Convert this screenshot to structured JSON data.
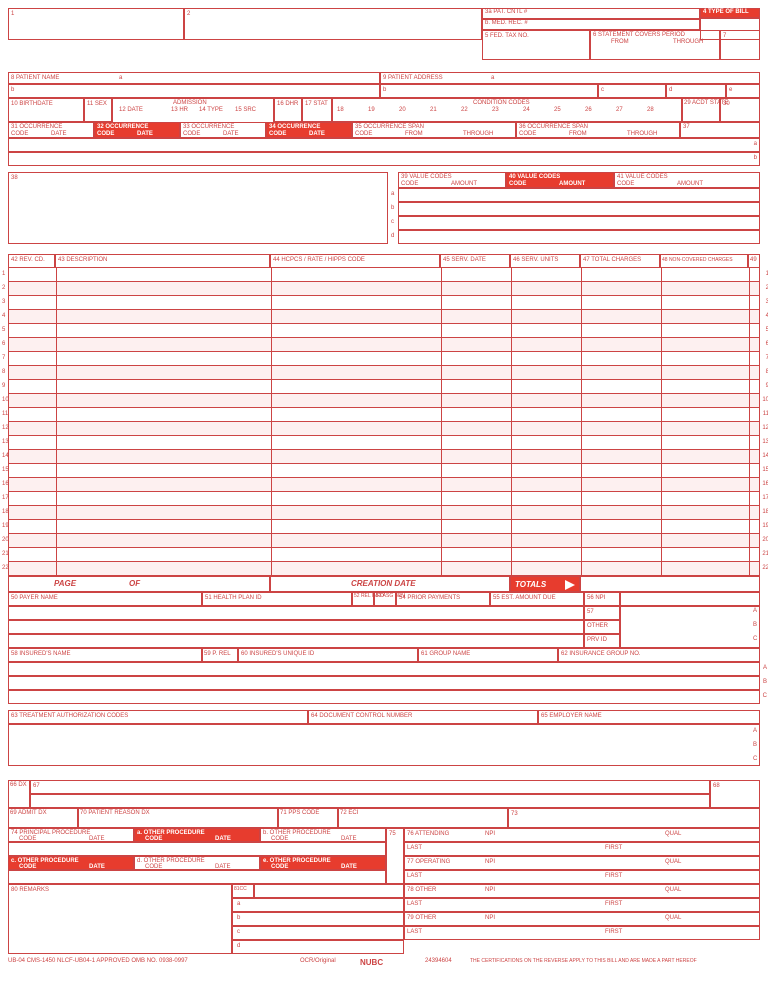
{
  "colors": {
    "main": "#c44",
    "highlight": "#e73c2e",
    "stripe": "#fdf0f0"
  },
  "row1": {
    "f1": "1",
    "f2": "2",
    "f3a": "3a PAT.\nCNTL #",
    "f3b": "b. MED.\nREC. #",
    "f4": "4    TYPE\nOF BILL",
    "f5": "5 FED. TAX NO.",
    "f6": "6   STATEMENT COVERS PERIOD",
    "f6from": "FROM",
    "f6through": "THROUGH",
    "f7": "7"
  },
  "row2": {
    "f8": "8 PATIENT NAME",
    "f8a": "a",
    "f8b": "b",
    "f9": "9 PATIENT ADDRESS",
    "f9a": "a",
    "f9b": "b",
    "f9c": "c",
    "f9d": "d",
    "f9e": "e"
  },
  "row3": {
    "f10": "10 BIRTHDATE",
    "f11": "11 SEX",
    "f12": "12   DATE",
    "admission": "ADMISSION",
    "f13": "13 HR",
    "f14": "14 TYPE",
    "f15": "15 SRC",
    "f16": "16 DHR",
    "f17": "17 STAT",
    "cond": "CONDITION CODES",
    "cond_nums": [
      "18",
      "19",
      "20",
      "21",
      "22",
      "23",
      "24",
      "25",
      "26",
      "27",
      "28"
    ],
    "f29": "29 ACDT\nSTATE",
    "f30": "30"
  },
  "occ": {
    "f31": "31      OCCURRENCE",
    "f32": "32      OCCURRENCE",
    "f33": "33      OCCURRENCE",
    "f34": "34      OCCURRENCE",
    "code": "CODE",
    "date": "DATE",
    "f35": "35               OCCURRENCE SPAN",
    "f36": "36               OCCURRENCE SPAN",
    "from": "FROM",
    "through": "THROUGH",
    "f37": "37"
  },
  "val": {
    "f38": "38",
    "f39": "39         VALUE CODES",
    "f40": "40         VALUE CODES",
    "f41": "41         VALUE CODES",
    "code": "CODE",
    "amount": "AMOUNT",
    "letters": [
      "a",
      "b",
      "c",
      "d"
    ]
  },
  "svc": {
    "f42": "42 REV. CD.",
    "f43": "43 DESCRIPTION",
    "f44": "44 HCPCS / RATE / HIPPS CODE",
    "f45": "45 SERV. DATE",
    "f46": "46 SERV. UNITS",
    "f47": "47 TOTAL CHARGES",
    "f48": "48 NON-COVERED CHARGES",
    "f49": "49",
    "page": "PAGE",
    "of": "OF",
    "creation": "CREATION DATE",
    "totals": "TOTALS"
  },
  "payer": {
    "f50": "50 PAYER NAME",
    "f51": "51 HEALTH PLAN ID",
    "f52": "52 REL\nINFO",
    "f53": "53 ASG\nBEN",
    "f54": "54 PRIOR PAYMENTS",
    "f55": "55 EST. AMOUNT DUE",
    "f56": "56 NPI",
    "f57": "57",
    "other": "OTHER",
    "prvid": "PRV ID",
    "letters": [
      "A",
      "B",
      "C"
    ]
  },
  "ins": {
    "f58": "58 INSURED'S NAME",
    "f59": "59 P. REL",
    "f60": "60 INSURED'S UNIQUE ID",
    "f61": "61 GROUP NAME",
    "f62": "62 INSURANCE GROUP NO."
  },
  "auth": {
    "f63": "63 TREATMENT AUTHORIZATION CODES",
    "f64": "64 DOCUMENT CONTROL NUMBER",
    "f65": "65 EMPLOYER NAME"
  },
  "dx": {
    "f66": "66\nDX",
    "f67": "67",
    "f68": "68",
    "f69": "69 ADMIT\n     DX",
    "f70": "70 PATIENT\n    REASON DX",
    "f71": "71 PPS\n    CODE",
    "f72": "72\nECI",
    "f73": "73"
  },
  "proc": {
    "f74": "74        PRINCIPAL PROCEDURE",
    "a": "a.         OTHER PROCEDURE",
    "b": "b.         OTHER PROCEDURE",
    "c": "c.         OTHER PROCEDURE",
    "d": "d.         OTHER PROCEDURE",
    "e": "e.         OTHER PROCEDURE",
    "code": "CODE",
    "date": "DATE",
    "f75": "75"
  },
  "phys": {
    "f76": "76 ATTENDING",
    "f77": "77 OPERATING",
    "f78": "78 OTHER",
    "f79": "79 OTHER",
    "npi": "NPI",
    "qual": "QUAL",
    "last": "LAST",
    "first": "FIRST"
  },
  "remarks": {
    "f80": "80 REMARKS",
    "f81": "81CC",
    "letters": [
      "a",
      "b",
      "c",
      "d"
    ]
  },
  "footer": {
    "left": "UB-04 CMS-1450       NLCF-UB04-1           APPROVED OMB NO. 0938-0997",
    "ocr": "OCR/Original",
    "nubc": "NUBC",
    "nubc2": "National Uniform\nBilling Committee",
    "num": "24394604",
    "right": "THE CERTIFICATIONS ON THE REVERSE APPLY TO THIS BILL AND ARE MADE A PART HEREOF"
  }
}
